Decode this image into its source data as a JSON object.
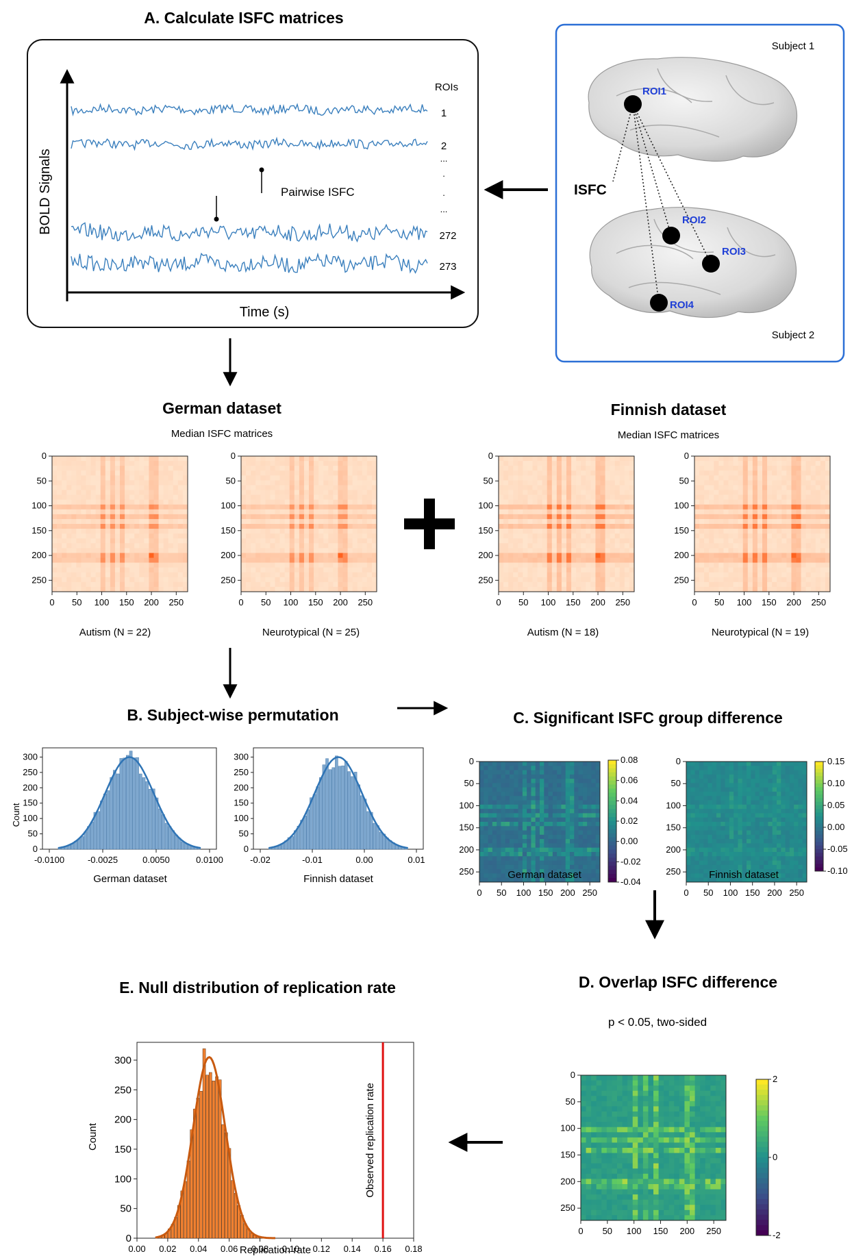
{
  "panel_a": {
    "title": "A. Calculate ISFC matrices",
    "y_axis_label": "BOLD Signals",
    "x_axis_label": "Time (s)",
    "rois_header": "ROIs",
    "roi_labels": [
      "1",
      "2",
      "...",
      ".",
      ".",
      "...",
      "272",
      "273"
    ],
    "pairwise_label": "Pairwise ISFC"
  },
  "brain_panel": {
    "isfc_label": "ISFC",
    "subject1": "Subject 1",
    "subject2": "Subject 2",
    "roi_names": [
      "ROI1",
      "ROI2",
      "ROI3",
      "ROI4"
    ]
  },
  "german": {
    "title": "German dataset",
    "subtitle": "Median ISFC matrices",
    "matrices": [
      {
        "label": "Autism (N = 22)"
      },
      {
        "label": "Neurotypical (N = 25)"
      }
    ]
  },
  "finnish": {
    "title": "Finnish dataset",
    "subtitle": "Median ISFC matrices",
    "matrices": [
      {
        "label": "Autism (N = 18)"
      },
      {
        "label": "Neurotypical (N = 19)"
      }
    ]
  },
  "matrix_ticks": [
    "0",
    "50",
    "100",
    "150",
    "200",
    "250"
  ],
  "panel_b": {
    "title": "B. Subject-wise permutation",
    "ylabel": "Count",
    "y_ticks": [
      "0",
      "50",
      "100",
      "150",
      "200",
      "250",
      "300"
    ],
    "german_xlabel": "German dataset",
    "german_x_ticks": [
      "-0.0100",
      "-0.0025",
      "0.0050",
      "0.0100"
    ],
    "finnish_xlabel": "Finnish dataset",
    "finnish_x_ticks": [
      "-0.02",
      "-0.01",
      "0.00",
      "0.01"
    ]
  },
  "panel_c": {
    "title": "C. Significant ISFC group difference",
    "german_xlabel": "German dataset",
    "finnish_xlabel": "Finnish dataset",
    "x_ticks": [
      "0",
      "50",
      "100",
      "150",
      "200",
      "250"
    ],
    "german_colorbar": [
      "0.08",
      "0.06",
      "0.04",
      "0.02",
      "0.00",
      "-0.02",
      "-0.04"
    ],
    "finnish_colorbar": [
      "0.15",
      "0.10",
      "0.05",
      "0.00",
      "-0.05",
      "-0.10"
    ]
  },
  "panel_d": {
    "title": "D. Overlap ISFC difference",
    "subtitle": "p < 0.05, two-sided",
    "colorbar": [
      "2",
      "0",
      "-2"
    ]
  },
  "panel_e": {
    "title": "E. Null distribution of replication rate",
    "ylabel": "Count",
    "xlabel": "Replication rate",
    "observed_label": "Observed replication rate",
    "y_ticks": [
      "0",
      "50",
      "100",
      "150",
      "200",
      "250",
      "300"
    ],
    "x_ticks": [
      "0.00",
      "0.02",
      "0.04",
      "0.06",
      "0.08",
      "0.10",
      "0.12",
      "0.14",
      "0.16",
      "0.18"
    ],
    "observed_value": 0.16
  },
  "colors": {
    "signal": "#3a7fbd",
    "hist": "#7fa8cf",
    "hist_line": "#2f74b5",
    "null_hist": "#f08030",
    "null_line": "#c85a10",
    "observed": "#e01010",
    "brain_frame": "#2b6fd6"
  }
}
